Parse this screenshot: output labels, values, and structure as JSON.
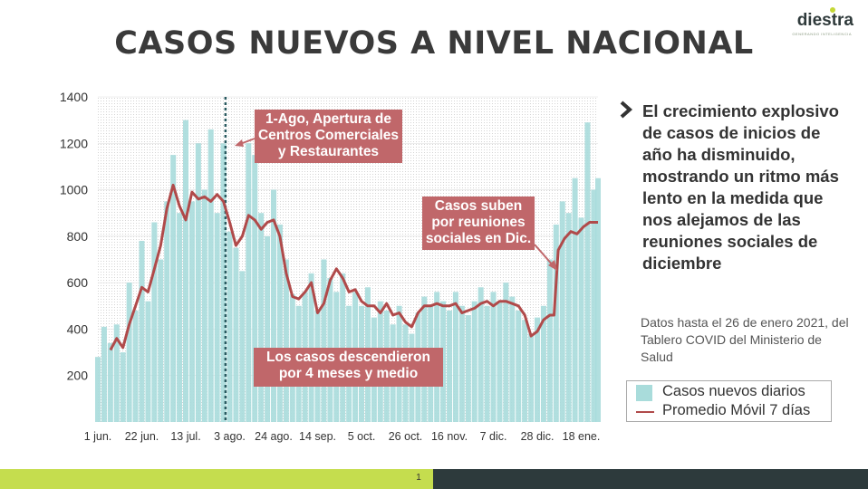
{
  "title": "CASOS NUEVOS A NIVEL NACIONAL",
  "logo": {
    "text": "diestra",
    "tagline": "GENERANDO INTELIGENCIA"
  },
  "side": {
    "headline": "El crecimiento explosivo de casos de inicios de año ha disminuido, mostrando un ritmo más lento en la medida que nos alejamos de las reuniones sociales de diciembre",
    "note": "Datos hasta el 26 de enero 2021, del Tablero COVID del Ministerio de Salud"
  },
  "legend": {
    "bars": "Casos nuevos diarios",
    "line": "Promedio Móvil 7 días"
  },
  "page_number": "1",
  "colors": {
    "bars": "#a9dcdb",
    "line": "#b04a4a",
    "callout": "#c0676a",
    "marker": "#2a5a60",
    "footer_left": "#c5dd4e",
    "footer_right": "#2d3a3c"
  },
  "chart_data": {
    "type": "bar",
    "title": "CASOS NUEVOS A NIVEL NACIONAL",
    "ylim": [
      0,
      1400
    ],
    "yticks": [
      "200",
      "400",
      "600",
      "800",
      "1000",
      "1200",
      "1400"
    ],
    "ytick_values": [
      200,
      400,
      600,
      800,
      1000,
      1200,
      1400
    ],
    "x_start": "2020-06-01",
    "x_end": "2021-01-26",
    "xticks": [
      {
        "date": "2020-06-01",
        "label": "1 jun."
      },
      {
        "date": "2020-06-22",
        "label": "22 jun."
      },
      {
        "date": "2020-07-13",
        "label": "13 jul."
      },
      {
        "date": "2020-08-03",
        "label": "3 ago."
      },
      {
        "date": "2020-08-24",
        "label": "24 ago."
      },
      {
        "date": "2020-09-14",
        "label": "14 sep."
      },
      {
        "date": "2020-10-05",
        "label": "5 oct."
      },
      {
        "date": "2020-10-26",
        "label": "26 oct."
      },
      {
        "date": "2020-11-16",
        "label": "16 nov."
      },
      {
        "date": "2020-12-07",
        "label": "7 dic."
      },
      {
        "date": "2020-12-28",
        "label": "28 dic."
      },
      {
        "date": "2021-01-18",
        "label": "18 ene."
      }
    ],
    "series": [
      {
        "kind": "bar",
        "name": "Casos nuevos diarios",
        "points": [
          [
            "2020-06-01",
            280
          ],
          [
            "2020-06-04",
            410
          ],
          [
            "2020-06-07",
            340
          ],
          [
            "2020-06-10",
            420
          ],
          [
            "2020-06-13",
            300
          ],
          [
            "2020-06-16",
            600
          ],
          [
            "2020-06-19",
            480
          ],
          [
            "2020-06-22",
            780
          ],
          [
            "2020-06-25",
            520
          ],
          [
            "2020-06-28",
            860
          ],
          [
            "2020-07-01",
            700
          ],
          [
            "2020-07-04",
            950
          ],
          [
            "2020-07-07",
            1150
          ],
          [
            "2020-07-10",
            900
          ],
          [
            "2020-07-13",
            1300
          ],
          [
            "2020-07-16",
            950
          ],
          [
            "2020-07-19",
            1200
          ],
          [
            "2020-07-22",
            1000
          ],
          [
            "2020-07-25",
            1260
          ],
          [
            "2020-07-28",
            900
          ],
          [
            "2020-07-31",
            1200
          ],
          [
            "2020-08-03",
            820
          ],
          [
            "2020-08-06",
            750
          ],
          [
            "2020-08-09",
            650
          ],
          [
            "2020-08-12",
            1200
          ],
          [
            "2020-08-15",
            1150
          ],
          [
            "2020-08-18",
            900
          ],
          [
            "2020-08-21",
            800
          ],
          [
            "2020-08-24",
            1000
          ],
          [
            "2020-08-27",
            850
          ],
          [
            "2020-08-30",
            700
          ],
          [
            "2020-09-02",
            550
          ],
          [
            "2020-09-05",
            500
          ],
          [
            "2020-09-08",
            560
          ],
          [
            "2020-09-11",
            640
          ],
          [
            "2020-09-14",
            480
          ],
          [
            "2020-09-17",
            700
          ],
          [
            "2020-09-20",
            620
          ],
          [
            "2020-09-23",
            560
          ],
          [
            "2020-09-26",
            640
          ],
          [
            "2020-09-29",
            500
          ],
          [
            "2020-10-02",
            560
          ],
          [
            "2020-10-05",
            500
          ],
          [
            "2020-10-08",
            580
          ],
          [
            "2020-10-11",
            450
          ],
          [
            "2020-10-14",
            520
          ],
          [
            "2020-10-17",
            480
          ],
          [
            "2020-10-20",
            420
          ],
          [
            "2020-10-23",
            500
          ],
          [
            "2020-10-26",
            420
          ],
          [
            "2020-10-29",
            380
          ],
          [
            "2020-11-01",
            470
          ],
          [
            "2020-11-04",
            540
          ],
          [
            "2020-11-07",
            500
          ],
          [
            "2020-11-10",
            560
          ],
          [
            "2020-11-13",
            520
          ],
          [
            "2020-11-16",
            480
          ],
          [
            "2020-11-19",
            560
          ],
          [
            "2020-11-22",
            500
          ],
          [
            "2020-11-25",
            460
          ],
          [
            "2020-11-28",
            520
          ],
          [
            "2020-12-01",
            580
          ],
          [
            "2020-12-04",
            500
          ],
          [
            "2020-12-07",
            560
          ],
          [
            "2020-12-10",
            520
          ],
          [
            "2020-12-13",
            600
          ],
          [
            "2020-12-16",
            540
          ],
          [
            "2020-12-19",
            480
          ],
          [
            "2020-12-22",
            440
          ],
          [
            "2020-12-25",
            380
          ],
          [
            "2020-12-28",
            450
          ],
          [
            "2020-12-31",
            500
          ],
          [
            "2021-01-03",
            700
          ],
          [
            "2021-01-06",
            850
          ],
          [
            "2021-01-09",
            950
          ],
          [
            "2021-01-12",
            900
          ],
          [
            "2021-01-15",
            1050
          ],
          [
            "2021-01-18",
            880
          ],
          [
            "2021-01-21",
            1290
          ],
          [
            "2021-01-24",
            1000
          ],
          [
            "2021-01-26",
            1050
          ]
        ]
      },
      {
        "kind": "line",
        "name": "Promedio Móvil 7 días",
        "points": [
          [
            "2020-06-07",
            310
          ],
          [
            "2020-06-10",
            360
          ],
          [
            "2020-06-13",
            320
          ],
          [
            "2020-06-16",
            420
          ],
          [
            "2020-06-19",
            500
          ],
          [
            "2020-06-22",
            580
          ],
          [
            "2020-06-25",
            560
          ],
          [
            "2020-06-28",
            660
          ],
          [
            "2020-07-01",
            760
          ],
          [
            "2020-07-04",
            920
          ],
          [
            "2020-07-07",
            1020
          ],
          [
            "2020-07-10",
            930
          ],
          [
            "2020-07-13",
            870
          ],
          [
            "2020-07-16",
            990
          ],
          [
            "2020-07-19",
            960
          ],
          [
            "2020-07-22",
            970
          ],
          [
            "2020-07-25",
            950
          ],
          [
            "2020-07-28",
            980
          ],
          [
            "2020-07-31",
            950
          ],
          [
            "2020-08-03",
            860
          ],
          [
            "2020-08-06",
            760
          ],
          [
            "2020-08-09",
            800
          ],
          [
            "2020-08-12",
            890
          ],
          [
            "2020-08-15",
            870
          ],
          [
            "2020-08-18",
            830
          ],
          [
            "2020-08-21",
            860
          ],
          [
            "2020-08-24",
            870
          ],
          [
            "2020-08-27",
            800
          ],
          [
            "2020-08-30",
            640
          ],
          [
            "2020-09-02",
            540
          ],
          [
            "2020-09-05",
            530
          ],
          [
            "2020-09-08",
            560
          ],
          [
            "2020-09-11",
            600
          ],
          [
            "2020-09-14",
            470
          ],
          [
            "2020-09-17",
            510
          ],
          [
            "2020-09-20",
            610
          ],
          [
            "2020-09-23",
            660
          ],
          [
            "2020-09-26",
            620
          ],
          [
            "2020-09-29",
            560
          ],
          [
            "2020-10-02",
            570
          ],
          [
            "2020-10-05",
            520
          ],
          [
            "2020-10-08",
            500
          ],
          [
            "2020-10-11",
            500
          ],
          [
            "2020-10-14",
            470
          ],
          [
            "2020-10-17",
            510
          ],
          [
            "2020-10-20",
            460
          ],
          [
            "2020-10-23",
            470
          ],
          [
            "2020-10-26",
            430
          ],
          [
            "2020-10-29",
            410
          ],
          [
            "2020-11-01",
            470
          ],
          [
            "2020-11-04",
            500
          ],
          [
            "2020-11-07",
            500
          ],
          [
            "2020-11-10",
            510
          ],
          [
            "2020-11-13",
            500
          ],
          [
            "2020-11-16",
            500
          ],
          [
            "2020-11-19",
            510
          ],
          [
            "2020-11-22",
            470
          ],
          [
            "2020-11-25",
            480
          ],
          [
            "2020-11-28",
            490
          ],
          [
            "2020-12-01",
            510
          ],
          [
            "2020-12-04",
            520
          ],
          [
            "2020-12-07",
            500
          ],
          [
            "2020-12-10",
            520
          ],
          [
            "2020-12-13",
            520
          ],
          [
            "2020-12-16",
            510
          ],
          [
            "2020-12-19",
            500
          ],
          [
            "2020-12-22",
            460
          ],
          [
            "2020-12-25",
            370
          ],
          [
            "2020-12-28",
            390
          ],
          [
            "2020-12-31",
            440
          ],
          [
            "2021-01-03",
            460
          ],
          [
            "2021-01-05",
            460
          ],
          [
            "2021-01-07",
            740
          ],
          [
            "2021-01-10",
            790
          ],
          [
            "2021-01-13",
            820
          ],
          [
            "2021-01-16",
            810
          ],
          [
            "2021-01-19",
            840
          ],
          [
            "2021-01-22",
            860
          ],
          [
            "2021-01-26",
            860
          ]
        ]
      }
    ],
    "marker_date": "2020-08-01",
    "annotations": [
      {
        "lines": [
          "1-Ago, Apertura de",
          "Centros Comerciales",
          "y Restaurantes"
        ]
      },
      {
        "lines": [
          "Casos suben",
          "por reuniones",
          "sociales en Dic."
        ]
      },
      {
        "lines": [
          "Los casos descendieron",
          "por 4 meses y medio"
        ]
      }
    ],
    "grid": true,
    "legend_position": "right"
  }
}
